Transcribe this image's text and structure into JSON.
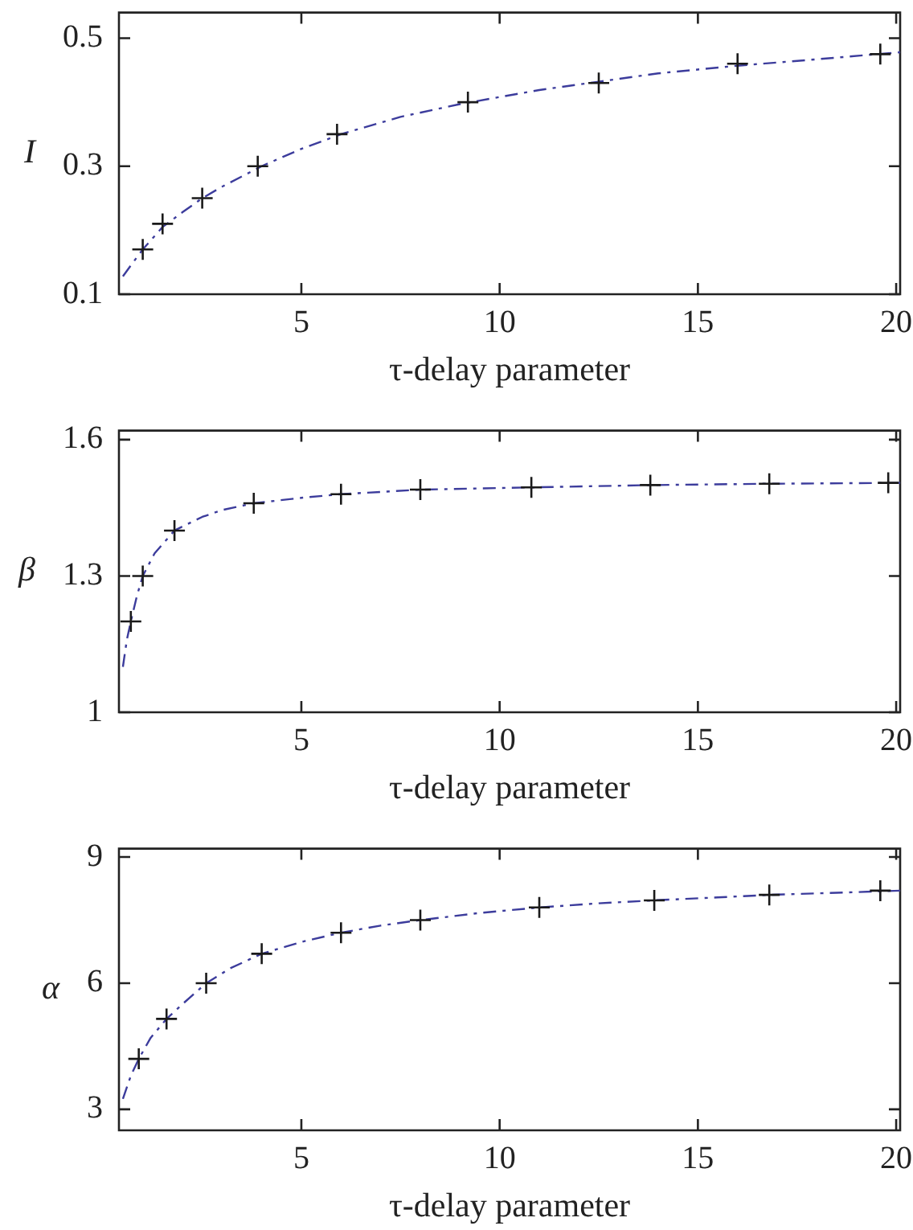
{
  "chart_data": [
    {
      "type": "line",
      "xlabel": "τ-delay parameter",
      "ylabel": "I",
      "xlim": [
        0.4,
        20.1
      ],
      "xticks": [
        5,
        10,
        15,
        20
      ],
      "ylim": [
        0.1,
        0.54
      ],
      "yticks": [
        0.1,
        0.3,
        0.5
      ],
      "series": [
        {
          "type": "line",
          "color": "#3c3c9c",
          "line_style": "dashed",
          "marker": "none",
          "x": [
            0.5,
            0.7,
            1,
            1.5,
            2,
            2.5,
            3,
            4,
            5,
            6,
            7.5,
            9,
            11,
            12.5,
            14,
            16,
            18,
            20.1
          ],
          "values": [
            0.128,
            0.145,
            0.17,
            0.205,
            0.228,
            0.25,
            0.268,
            0.3,
            0.327,
            0.35,
            0.377,
            0.397,
            0.419,
            0.432,
            0.445,
            0.457,
            0.467,
            0.478
          ]
        },
        {
          "type": "scatter",
          "color": "#1a1a1a",
          "marker": "cross",
          "x": [
            1,
            1.5,
            2.5,
            3.9,
            5.9,
            9.2,
            12.5,
            16,
            19.6
          ],
          "values": [
            0.17,
            0.21,
            0.25,
            0.3,
            0.35,
            0.4,
            0.43,
            0.46,
            0.475
          ]
        }
      ]
    },
    {
      "type": "line",
      "xlabel": "τ-delay parameter",
      "ylabel": "β",
      "xlim": [
        0.4,
        20.1
      ],
      "xticks": [
        5,
        10,
        15,
        20
      ],
      "ylim": [
        1,
        1.62
      ],
      "yticks": [
        1,
        1.3,
        1.6
      ],
      "series": [
        {
          "type": "line",
          "color": "#3c3c9c",
          "line_style": "dashed",
          "marker": "none",
          "x": [
            0.5,
            0.6,
            0.7,
            0.85,
            1,
            1.3,
            1.8,
            2.5,
            3,
            3.8,
            5,
            6,
            8,
            10.8,
            13.8,
            16.8,
            20.1
          ],
          "values": [
            1.1,
            1.16,
            1.2,
            1.255,
            1.3,
            1.35,
            1.4,
            1.43,
            1.445,
            1.46,
            1.472,
            1.48,
            1.49,
            1.495,
            1.5,
            1.503,
            1.505
          ]
        },
        {
          "type": "scatter",
          "color": "#1a1a1a",
          "marker": "cross",
          "x": [
            0.7,
            1,
            1.8,
            3.8,
            6,
            8,
            10.8,
            13.8,
            16.8,
            19.8
          ],
          "values": [
            1.2,
            1.3,
            1.4,
            1.46,
            1.48,
            1.49,
            1.495,
            1.5,
            1.503,
            1.505
          ]
        }
      ]
    },
    {
      "type": "line",
      "xlabel": "τ-delay parameter",
      "ylabel": "α",
      "xlim": [
        0.4,
        20.1
      ],
      "xticks": [
        5,
        10,
        15,
        20
      ],
      "ylim": [
        2.5,
        9.2
      ],
      "yticks": [
        3,
        6,
        9
      ],
      "series": [
        {
          "type": "line",
          "color": "#3c3c9c",
          "line_style": "dashed",
          "marker": "none",
          "x": [
            0.5,
            0.7,
            0.9,
            1.2,
            1.6,
            2,
            2.6,
            3.2,
            4,
            5,
            6,
            7,
            8,
            9.5,
            11,
            12.5,
            13.9,
            15.5,
            16.8,
            18.5,
            20.1
          ],
          "values": [
            3.25,
            3.8,
            4.2,
            4.7,
            5.15,
            5.5,
            6,
            6.35,
            6.7,
            6.98,
            7.2,
            7.37,
            7.5,
            7.67,
            7.8,
            7.9,
            7.97,
            8.04,
            8.1,
            8.15,
            8.2
          ]
        },
        {
          "type": "scatter",
          "color": "#1a1a1a",
          "marker": "cross",
          "x": [
            0.9,
            1.6,
            2.6,
            4,
            6,
            8,
            11,
            13.9,
            16.8,
            19.6
          ],
          "values": [
            4.2,
            5.15,
            6,
            6.7,
            7.2,
            7.5,
            7.8,
            7.97,
            8.1,
            8.2
          ]
        }
      ]
    }
  ]
}
